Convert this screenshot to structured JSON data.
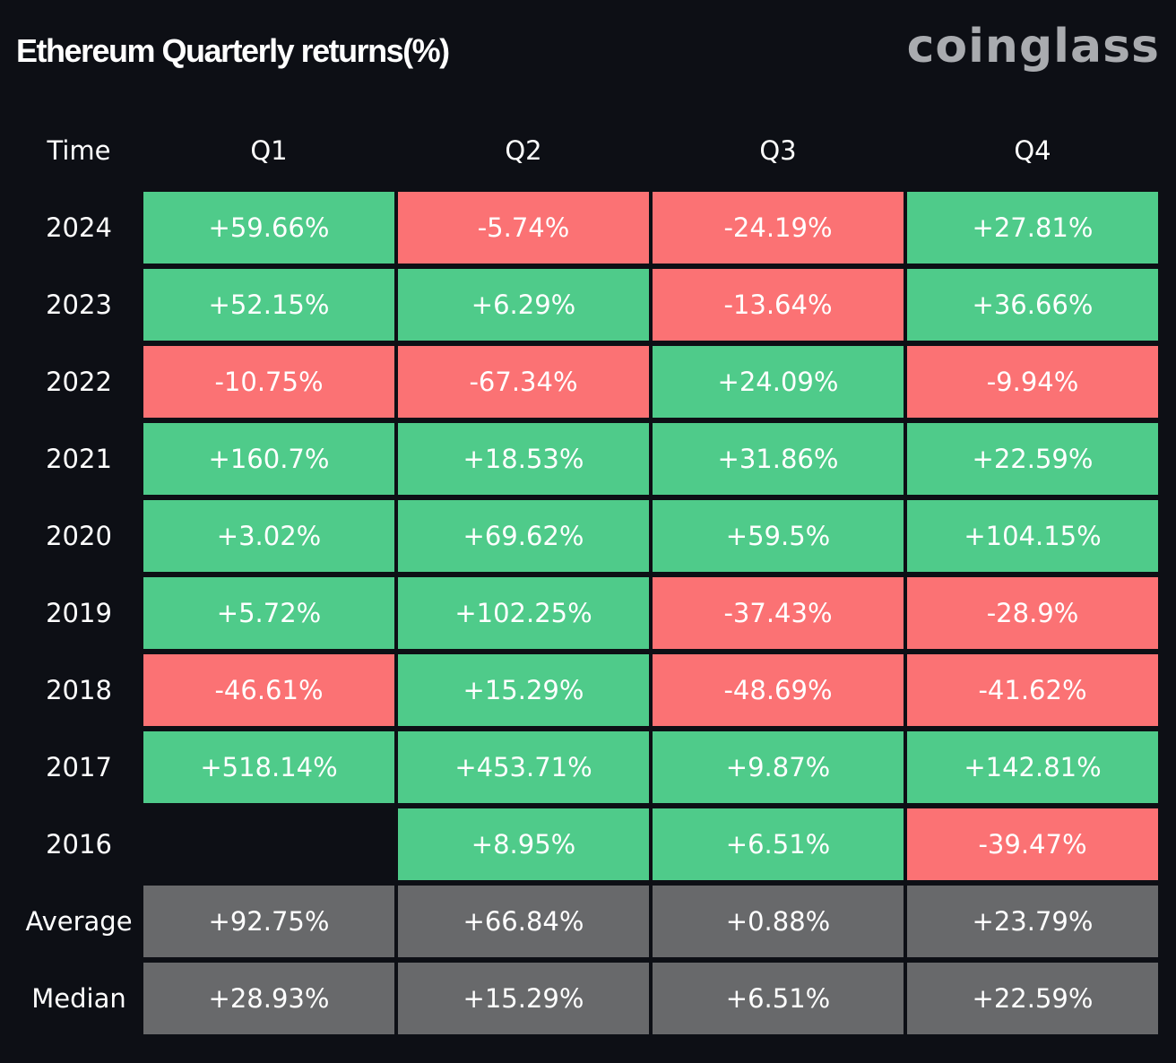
{
  "title": "Ethereum Quarterly returns(%)",
  "brand": "coinglass",
  "colors": {
    "background": "#0d0f15",
    "positive": "#4fcb8a",
    "negative": "#fb7274",
    "summary": "#68696b"
  },
  "chart_data": {
    "type": "heatmap",
    "header": {
      "row_label": "Time",
      "columns": [
        "Q1",
        "Q2",
        "Q3",
        "Q4"
      ]
    },
    "rows": [
      {
        "label": "2024",
        "values": [
          "+59.66%",
          "-5.74%",
          "-24.19%",
          "+27.81%"
        ]
      },
      {
        "label": "2023",
        "values": [
          "+52.15%",
          "+6.29%",
          "-13.64%",
          "+36.66%"
        ]
      },
      {
        "label": "2022",
        "values": [
          "-10.75%",
          "-67.34%",
          "+24.09%",
          "-9.94%"
        ]
      },
      {
        "label": "2021",
        "values": [
          "+160.7%",
          "+18.53%",
          "+31.86%",
          "+22.59%"
        ]
      },
      {
        "label": "2020",
        "values": [
          "+3.02%",
          "+69.62%",
          "+59.5%",
          "+104.15%"
        ]
      },
      {
        "label": "2019",
        "values": [
          "+5.72%",
          "+102.25%",
          "-37.43%",
          "-28.9%"
        ]
      },
      {
        "label": "2018",
        "values": [
          "-46.61%",
          "+15.29%",
          "-48.69%",
          "-41.62%"
        ]
      },
      {
        "label": "2017",
        "values": [
          "+518.14%",
          "+453.71%",
          "+9.87%",
          "+142.81%"
        ]
      },
      {
        "label": "2016",
        "values": [
          "",
          "+8.95%",
          "+6.51%",
          "-39.47%"
        ]
      }
    ],
    "summary": [
      {
        "label": "Average",
        "values": [
          "+92.75%",
          "+66.84%",
          "+0.88%",
          "+23.79%"
        ]
      },
      {
        "label": "Median",
        "values": [
          "+28.93%",
          "+15.29%",
          "+6.51%",
          "+22.59%"
        ]
      }
    ]
  }
}
